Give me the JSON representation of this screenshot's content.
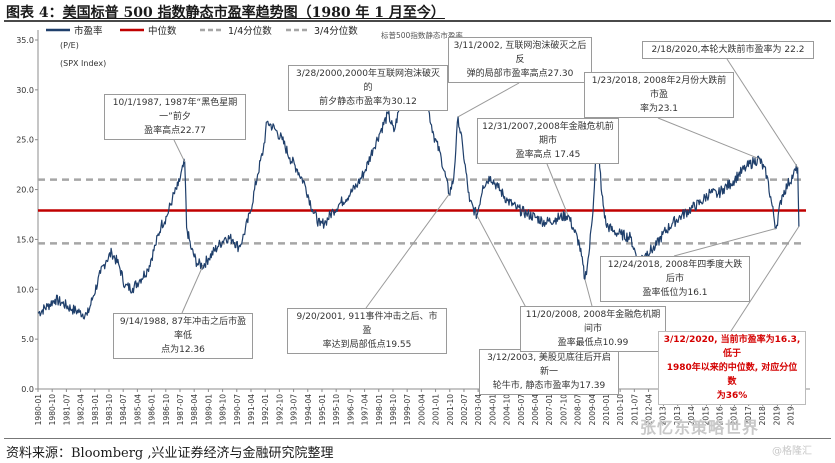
{
  "figure": {
    "title_prefix": "图表 4：",
    "title_text": "美国标普 500 指数静态市盈率趋势图（1980 年 1 月至今）",
    "source": "资料来源：Bloomberg ,兴业证券经济与金融研究院整理",
    "watermark": "张忆东策略世界",
    "watermark_sub": "@格隆汇"
  },
  "chart_data": {
    "type": "line",
    "ylabel": "(P/E)",
    "ylabel2": "(SPX Index)",
    "ylim": [
      0,
      35
    ],
    "yticks": [
      "0.0",
      "5.0",
      "10.0",
      "15.0",
      "20.0",
      "25.0",
      "30.0",
      "35.0"
    ],
    "legend": {
      "items": [
        {
          "name": "市盈率",
          "color": "#1f3f6b",
          "style": "solid"
        },
        {
          "name": "中位数",
          "color": "#c00000",
          "style": "solid"
        },
        {
          "name": "1/4分位数",
          "color": "#a6a6a6",
          "style": "dashed"
        },
        {
          "name": "3/4分位数",
          "color": "#a6a6a6",
          "style": "dashed"
        }
      ],
      "subtitle": "标普500指数静态市盈率"
    },
    "reference_lines": {
      "median": 17.9,
      "q1": 14.6,
      "q3": 21.0
    },
    "x_ticks": [
      "1980-01",
      "1980-10",
      "1981-07",
      "1982-04",
      "1983-01",
      "1983-10",
      "1984-07",
      "1985-04",
      "1986-01",
      "1986-10",
      "1987-07",
      "1988-04",
      "1989-01",
      "1989-10",
      "1990-07",
      "1991-04",
      "1992-01",
      "1992-10",
      "1993-07",
      "1994-04",
      "1995-01",
      "1995-10",
      "1996-07",
      "1997-04",
      "1998-01",
      "1998-10",
      "1999-07",
      "2000-04",
      "2001-01",
      "2001-10",
      "2002-07",
      "2003-04",
      "2004-01",
      "2004-10",
      "2005-07",
      "2006-04",
      "2007-01",
      "2007-10",
      "2008-07",
      "2009-04",
      "2010-01",
      "2010-10",
      "2011-07",
      "2012-04",
      "2013-01",
      "2013-10",
      "2014-07",
      "2015-04",
      "2016-01",
      "2016-10",
      "2017-07",
      "2018-04",
      "2019-01",
      "2019-10"
    ],
    "series": [
      {
        "name": "市盈率",
        "points": [
          [
            1980.0,
            7.6
          ],
          [
            1980.5,
            8.3
          ],
          [
            1980.9,
            9.0
          ],
          [
            1981.3,
            8.6
          ],
          [
            1981.8,
            8.0
          ],
          [
            1982.2,
            7.7
          ],
          [
            1982.6,
            7.4
          ],
          [
            1982.9,
            9.2
          ],
          [
            1983.3,
            11.6
          ],
          [
            1983.6,
            12.9
          ],
          [
            1983.9,
            13.7
          ],
          [
            1984.3,
            12.3
          ],
          [
            1984.6,
            10.3
          ],
          [
            1985.0,
            10.1
          ],
          [
            1985.4,
            11.0
          ],
          [
            1985.8,
            12.0
          ],
          [
            1986.2,
            14.4
          ],
          [
            1986.5,
            16.4
          ],
          [
            1986.8,
            17.3
          ],
          [
            1987.1,
            19.1
          ],
          [
            1987.4,
            20.4
          ],
          [
            1987.75,
            22.77
          ],
          [
            1987.85,
            16.2
          ],
          [
            1988.1,
            14.0
          ],
          [
            1988.4,
            12.6
          ],
          [
            1988.71,
            12.36
          ],
          [
            1989.0,
            13.1
          ],
          [
            1989.5,
            14.3
          ],
          [
            1989.9,
            15.2
          ],
          [
            1990.3,
            15.0
          ],
          [
            1990.6,
            14.2
          ],
          [
            1990.8,
            15.0
          ],
          [
            1991.2,
            17.6
          ],
          [
            1991.6,
            21.5
          ],
          [
            1991.9,
            24.0
          ],
          [
            1992.1,
            26.8
          ],
          [
            1992.5,
            26.1
          ],
          [
            1992.9,
            25.0
          ],
          [
            1993.3,
            23.2
          ],
          [
            1993.7,
            22.0
          ],
          [
            1994.1,
            20.5
          ],
          [
            1994.5,
            18.0
          ],
          [
            1994.9,
            16.4
          ],
          [
            1995.2,
            16.8
          ],
          [
            1995.6,
            17.9
          ],
          [
            1996.0,
            18.7
          ],
          [
            1996.5,
            19.6
          ],
          [
            1996.9,
            20.6
          ],
          [
            1997.3,
            22.0
          ],
          [
            1997.7,
            24.1
          ],
          [
            1998.1,
            25.9
          ],
          [
            1998.5,
            27.6
          ],
          [
            1998.8,
            25.8
          ],
          [
            1999.2,
            29.0
          ],
          [
            1999.6,
            29.7
          ],
          [
            2000.0,
            29.3
          ],
          [
            2000.24,
            30.12
          ],
          [
            2000.6,
            28.2
          ],
          [
            2000.9,
            25.5
          ],
          [
            2001.3,
            23.2
          ],
          [
            2001.72,
            19.55
          ],
          [
            2001.95,
            21.0
          ],
          [
            2002.19,
            27.3
          ],
          [
            2002.45,
            24.0
          ],
          [
            2002.8,
            18.8
          ],
          [
            2003.19,
            17.39
          ],
          [
            2003.5,
            20.4
          ],
          [
            2003.9,
            21.3
          ],
          [
            2004.3,
            20.2
          ],
          [
            2004.8,
            18.9
          ],
          [
            2005.3,
            18.1
          ],
          [
            2005.8,
            17.6
          ],
          [
            2006.3,
            17.2
          ],
          [
            2006.8,
            16.7
          ],
          [
            2007.4,
            17.1
          ],
          [
            2007.99,
            17.45
          ],
          [
            2008.3,
            16.0
          ],
          [
            2008.6,
            14.5
          ],
          [
            2008.89,
            10.99
          ],
          [
            2009.1,
            13.5
          ],
          [
            2009.35,
            19.0
          ],
          [
            2009.55,
            26.5
          ],
          [
            2009.75,
            20.0
          ],
          [
            2010.0,
            16.5
          ],
          [
            2010.4,
            15.8
          ],
          [
            2010.8,
            15.5
          ],
          [
            2011.3,
            15.2
          ],
          [
            2011.7,
            12.8
          ],
          [
            2012.1,
            13.6
          ],
          [
            2012.6,
            14.2
          ],
          [
            2013.0,
            15.5
          ],
          [
            2013.5,
            16.6
          ],
          [
            2014.0,
            17.4
          ],
          [
            2014.5,
            18.1
          ],
          [
            2015.0,
            18.7
          ],
          [
            2015.5,
            19.7
          ],
          [
            2015.9,
            19.5
          ],
          [
            2016.2,
            20.1
          ],
          [
            2016.6,
            20.6
          ],
          [
            2017.0,
            21.5
          ],
          [
            2017.4,
            22.2
          ],
          [
            2017.8,
            22.8
          ],
          [
            2018.09,
            23.1
          ],
          [
            2018.5,
            21.4
          ],
          [
            2018.98,
            16.1
          ],
          [
            2019.3,
            19.4
          ],
          [
            2019.6,
            20.5
          ],
          [
            2019.9,
            21.5
          ],
          [
            2020.13,
            22.2
          ],
          [
            2020.19,
            16.3
          ]
        ]
      }
    ],
    "annotations": [
      {
        "id": "a1987",
        "text": "10/1/1987, 1987年“黑色星期一”前夕\n盈率高点22.77",
        "x": 1987.75,
        "y": 22.77,
        "color": "default"
      },
      {
        "id": "a1988",
        "text": "9/14/1988, 87年冲击之后市盈率低\n点为12.36",
        "x": 1988.71,
        "y": 12.36,
        "color": "default"
      },
      {
        "id": "a2000",
        "text": "3/28/2000,2000年互联网泡沫破灭的\n前夕静态市盈率为30.12",
        "x": 2000.24,
        "y": 30.12,
        "color": "default"
      },
      {
        "id": "a2001",
        "text": "9/20/2001, 911事件冲击之后、市盈\n率达到局部低点19.55",
        "x": 2001.72,
        "y": 19.55,
        "color": "default"
      },
      {
        "id": "a2002",
        "text": "3/11/2002, 互联网泡沫破灭之后反\n弹的局部市盈率高点27.30",
        "x": 2002.19,
        "y": 27.3,
        "color": "default"
      },
      {
        "id": "a2003",
        "text": "3/12/2003, 美股见底往后开启新一\n轮牛市, 静态市盈率为17.39",
        "x": 2003.19,
        "y": 17.39,
        "color": "default"
      },
      {
        "id": "a2007",
        "text": "12/31/2007,2008年金融危机前期市\n盈率高点 17.45",
        "x": 2007.99,
        "y": 17.45,
        "color": "default"
      },
      {
        "id": "a2008",
        "text": "11/20/2008, 2008年金融危机期间市\n盈率最低点10.99",
        "x": 2008.89,
        "y": 10.99,
        "color": "default"
      },
      {
        "id": "a2018a",
        "text": "1/23/2018, 2008年2月份大跌前市盈\n率为23.1",
        "x": 2018.09,
        "y": 23.1,
        "color": "default"
      },
      {
        "id": "a2018b",
        "text": "12/24/2018, 2008年四季度大跌后市\n盈率低位为16.1",
        "x": 2018.98,
        "y": 16.1,
        "color": "default"
      },
      {
        "id": "a2020a",
        "text": "2/18/2020,本轮大跌前市盈率为 22.2",
        "x": 2020.13,
        "y": 22.2,
        "color": "default"
      },
      {
        "id": "a2020b",
        "text": "3/12/2020, 当前市盈率为16.3,低于\n1980年以来的中位数, 对应分位数\n为36%",
        "x": 2020.19,
        "y": 16.3,
        "color": "red"
      }
    ]
  }
}
